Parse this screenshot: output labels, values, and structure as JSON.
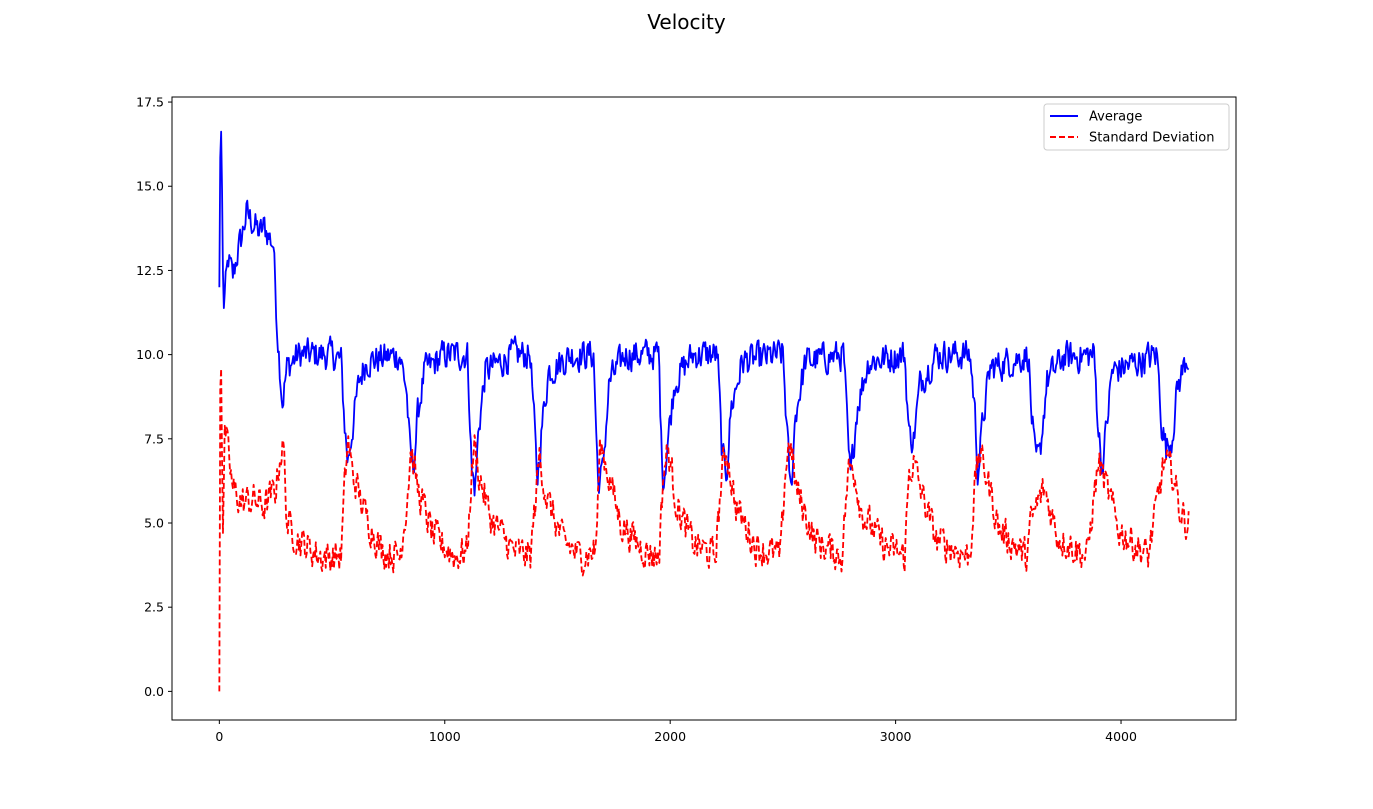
{
  "chart_data": {
    "type": "line",
    "title": "Velocity",
    "xlabel": "",
    "ylabel": "",
    "xlim": [
      -210,
      4510
    ],
    "ylim": [
      -0.85,
      17.65
    ],
    "xticks": [
      0,
      1000,
      2000,
      3000,
      4000
    ],
    "xtick_labels": [
      "0",
      "1000",
      "2000",
      "3000",
      "4000"
    ],
    "yticks": [
      0.0,
      2.5,
      5.0,
      7.5,
      10.0,
      12.5,
      15.0,
      17.5
    ],
    "ytick_labels": [
      "0.0",
      "2.5",
      "5.0",
      "7.5",
      "10.0",
      "12.5",
      "15.0",
      "17.5"
    ],
    "grid": false,
    "legend_position": "top-right",
    "x_range": [
      0,
      4300
    ],
    "series": [
      {
        "name": "Average",
        "color": "#0000ff",
        "style": "solid",
        "keypoints": [
          [
            0,
            12.0
          ],
          [
            5,
            16.8
          ],
          [
            10,
            16.5
          ],
          [
            15,
            12.5
          ],
          [
            20,
            11.5
          ],
          [
            40,
            12.8
          ],
          [
            60,
            12.3
          ],
          [
            80,
            13.0
          ],
          [
            100,
            13.5
          ],
          [
            120,
            14.2
          ],
          [
            140,
            14.0
          ],
          [
            160,
            13.8
          ],
          [
            180,
            13.6
          ],
          [
            200,
            13.8
          ],
          [
            220,
            13.5
          ],
          [
            240,
            13.3
          ],
          [
            255,
            11.0
          ],
          [
            270,
            9.5
          ],
          [
            280,
            8.6
          ],
          [
            300,
            9.6
          ],
          [
            350,
            10.0
          ],
          [
            500,
            10.0
          ],
          [
            540,
            9.8
          ],
          [
            555,
            8.0
          ],
          [
            570,
            6.8
          ],
          [
            590,
            7.8
          ],
          [
            620,
            9.2
          ],
          [
            650,
            9.8
          ],
          [
            800,
            10.0
          ],
          [
            830,
            9.0
          ],
          [
            845,
            7.2
          ],
          [
            860,
            6.6
          ],
          [
            880,
            8.2
          ],
          [
            910,
            9.5
          ],
          [
            1000,
            10.0
          ],
          [
            1100,
            10.0
          ],
          [
            1110,
            8.5
          ],
          [
            1120,
            6.5
          ],
          [
            1135,
            6.0
          ],
          [
            1150,
            7.8
          ],
          [
            1180,
            9.5
          ],
          [
            1300,
            10.0
          ],
          [
            1380,
            10.0
          ],
          [
            1395,
            8.2
          ],
          [
            1410,
            6.2
          ],
          [
            1430,
            7.8
          ],
          [
            1460,
            9.5
          ],
          [
            1560,
            10.0
          ],
          [
            1660,
            10.0
          ],
          [
            1680,
            6.2
          ],
          [
            1700,
            6.5
          ],
          [
            1730,
            9.2
          ],
          [
            1800,
            10.0
          ],
          [
            1950,
            10.0
          ],
          [
            1960,
            7.5
          ],
          [
            1970,
            6.2
          ],
          [
            1990,
            7.5
          ],
          [
            2020,
            9.2
          ],
          [
            2100,
            10.0
          ],
          [
            2210,
            10.0
          ],
          [
            2230,
            7.0
          ],
          [
            2250,
            6.5
          ],
          [
            2270,
            8.4
          ],
          [
            2320,
            9.8
          ],
          [
            2500,
            10.0
          ],
          [
            2520,
            7.5
          ],
          [
            2535,
            5.8
          ],
          [
            2555,
            8.2
          ],
          [
            2600,
            9.8
          ],
          [
            2770,
            10.0
          ],
          [
            2790,
            7.2
          ],
          [
            2800,
            6.3
          ],
          [
            2830,
            8.5
          ],
          [
            2880,
            9.8
          ],
          [
            3040,
            10.0
          ],
          [
            3060,
            7.6
          ],
          [
            3080,
            7.5
          ],
          [
            3110,
            9.2
          ],
          [
            3180,
            10.0
          ],
          [
            3330,
            10.0
          ],
          [
            3350,
            8.5
          ],
          [
            3365,
            6.5
          ],
          [
            3390,
            8.2
          ],
          [
            3420,
            9.6
          ],
          [
            3590,
            10.0
          ],
          [
            3600,
            8.5
          ],
          [
            3620,
            6.8
          ],
          [
            3640,
            7.0
          ],
          [
            3670,
            9.2
          ],
          [
            3740,
            9.9
          ],
          [
            3880,
            10.0
          ],
          [
            3900,
            7.8
          ],
          [
            3915,
            6.6
          ],
          [
            3935,
            7.8
          ],
          [
            3960,
            9.5
          ],
          [
            4160,
            10.0
          ],
          [
            4180,
            8.0
          ],
          [
            4200,
            7.2
          ],
          [
            4225,
            7.5
          ],
          [
            4250,
            9.0
          ],
          [
            4290,
            9.9
          ]
        ]
      },
      {
        "name": "Standard Deviation",
        "color": "#ff0000",
        "style": "dashed",
        "keypoints": [
          [
            0,
            0.0
          ],
          [
            5,
            11.2
          ],
          [
            10,
            8.5
          ],
          [
            15,
            4.5
          ],
          [
            25,
            7.8
          ],
          [
            40,
            7.0
          ],
          [
            60,
            6.0
          ],
          [
            100,
            5.6
          ],
          [
            150,
            5.7
          ],
          [
            200,
            5.5
          ],
          [
            250,
            6.0
          ],
          [
            270,
            7.0
          ],
          [
            285,
            7.3
          ],
          [
            300,
            5.0
          ],
          [
            350,
            4.5
          ],
          [
            450,
            4.0
          ],
          [
            540,
            4.0
          ],
          [
            555,
            6.0
          ],
          [
            570,
            7.5
          ],
          [
            590,
            6.5
          ],
          [
            650,
            5.2
          ],
          [
            720,
            4.2
          ],
          [
            800,
            4.0
          ],
          [
            830,
            5.5
          ],
          [
            850,
            7.2
          ],
          [
            880,
            6.0
          ],
          [
            950,
            4.6
          ],
          [
            1050,
            4.0
          ],
          [
            1100,
            4.2
          ],
          [
            1115,
            6.0
          ],
          [
            1130,
            7.4
          ],
          [
            1150,
            6.5
          ],
          [
            1200,
            5.2
          ],
          [
            1300,
            4.2
          ],
          [
            1380,
            4.0
          ],
          [
            1400,
            5.5
          ],
          [
            1420,
            7.0
          ],
          [
            1450,
            5.8
          ],
          [
            1520,
            4.5
          ],
          [
            1600,
            4.0
          ],
          [
            1670,
            4.2
          ],
          [
            1690,
            7.4
          ],
          [
            1720,
            6.6
          ],
          [
            1780,
            5.0
          ],
          [
            1880,
            4.2
          ],
          [
            1950,
            4.0
          ],
          [
            1970,
            6.5
          ],
          [
            1990,
            7.2
          ],
          [
            2030,
            5.5
          ],
          [
            2100,
            4.4
          ],
          [
            2200,
            4.0
          ],
          [
            2230,
            6.5
          ],
          [
            2250,
            7.2
          ],
          [
            2290,
            5.5
          ],
          [
            2380,
            4.3
          ],
          [
            2490,
            4.0
          ],
          [
            2510,
            6.5
          ],
          [
            2530,
            7.5
          ],
          [
            2560,
            6.0
          ],
          [
            2640,
            4.5
          ],
          [
            2760,
            4.0
          ],
          [
            2790,
            6.5
          ],
          [
            2810,
            6.8
          ],
          [
            2850,
            5.3
          ],
          [
            2950,
            4.3
          ],
          [
            3040,
            4.0
          ],
          [
            3060,
            6.5
          ],
          [
            3080,
            6.8
          ],
          [
            3110,
            6.0
          ],
          [
            3180,
            4.5
          ],
          [
            3330,
            4.0
          ],
          [
            3350,
            6.0
          ],
          [
            3370,
            7.1
          ],
          [
            3400,
            6.5
          ],
          [
            3460,
            4.8
          ],
          [
            3580,
            4.0
          ],
          [
            3600,
            5.0
          ],
          [
            3630,
            5.6
          ],
          [
            3660,
            6.0
          ],
          [
            3720,
            4.6
          ],
          [
            3850,
            4.0
          ],
          [
            3880,
            5.8
          ],
          [
            3900,
            6.8
          ],
          [
            3930,
            6.2
          ],
          [
            3990,
            4.8
          ],
          [
            4120,
            4.0
          ],
          [
            4160,
            5.6
          ],
          [
            4190,
            6.8
          ],
          [
            4230,
            6.5
          ],
          [
            4260,
            5.4
          ],
          [
            4290,
            5.0
          ]
        ]
      }
    ]
  }
}
